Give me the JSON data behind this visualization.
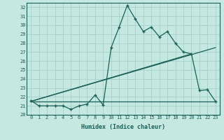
{
  "title": "",
  "xlabel": "Humidex (Indice chaleur)",
  "ylabel": "",
  "bg_color": "#c5e8e0",
  "line_color": "#1a5f58",
  "grid_color": "#9dccc4",
  "xlim": [
    -0.5,
    23.5
  ],
  "ylim": [
    20.0,
    32.5
  ],
  "xticks": [
    0,
    1,
    2,
    3,
    4,
    5,
    6,
    7,
    8,
    9,
    10,
    11,
    12,
    13,
    14,
    15,
    16,
    17,
    18,
    19,
    20,
    21,
    22,
    23
  ],
  "yticks": [
    20,
    21,
    22,
    23,
    24,
    25,
    26,
    27,
    28,
    29,
    30,
    31,
    32
  ],
  "data_x": [
    0,
    1,
    2,
    3,
    4,
    5,
    6,
    7,
    8,
    9,
    10,
    11,
    12,
    13,
    14,
    15,
    16,
    17,
    18,
    19,
    20,
    21,
    22,
    23
  ],
  "data_y": [
    21.6,
    21.0,
    21.0,
    21.0,
    21.0,
    20.6,
    21.0,
    21.2,
    22.2,
    21.1,
    27.5,
    29.8,
    32.2,
    30.7,
    29.3,
    29.8,
    28.7,
    29.3,
    28.0,
    27.0,
    26.8,
    22.7,
    22.8,
    21.5
  ],
  "ref_line1_x": [
    0,
    23
  ],
  "ref_line1_y": [
    21.5,
    21.5
  ],
  "ref_line2_x": [
    0,
    20
  ],
  "ref_line2_y": [
    21.5,
    26.8
  ],
  "ref_line3_x": [
    0,
    23
  ],
  "ref_line3_y": [
    21.5,
    27.5
  ]
}
